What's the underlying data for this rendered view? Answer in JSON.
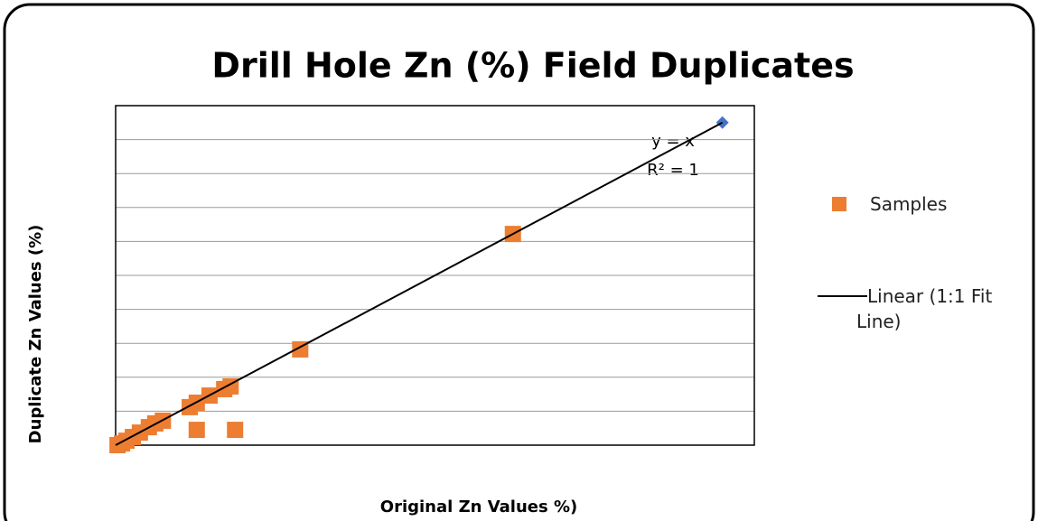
{
  "chart_data": {
    "type": "scatter",
    "title": "Drill Hole Zn (%) Field Duplicates",
    "x_label": "Original Zn Values %)",
    "y_label": "Duplicate Zn Values (%)",
    "annotations": [
      "y = x",
      "R² = 1"
    ],
    "xlim": [
      0,
      10
    ],
    "ylim": [
      0,
      10
    ],
    "yticks": [
      0,
      1,
      2,
      3,
      4,
      5,
      6,
      7,
      8,
      9,
      10
    ],
    "grid": true,
    "series": [
      {
        "name": "Samples",
        "color": "#ed7d31",
        "marker": "square",
        "x": [
          0.03,
          0.1,
          0.17,
          0.27,
          0.38,
          0.52,
          0.62,
          0.74,
          1.16,
          1.27,
          1.47,
          1.7,
          1.8,
          1.27,
          1.87,
          2.89,
          6.22
        ],
        "values": [
          0,
          0.05,
          0.13,
          0.24,
          0.37,
          0.53,
          0.64,
          0.72,
          1.12,
          1.25,
          1.46,
          1.65,
          1.73,
          0.45,
          0.45,
          2.82,
          6.22
        ]
      },
      {
        "color": "#4472c4",
        "marker": "diamond",
        "x": [
          9.5
        ],
        "values": [
          9.5
        ]
      },
      {
        "name": "Linear (1:1 Fit Line)",
        "color": "#000000",
        "marker": "line",
        "x": [
          0,
          9.5
        ],
        "values": [
          0,
          9.5
        ]
      }
    ]
  }
}
